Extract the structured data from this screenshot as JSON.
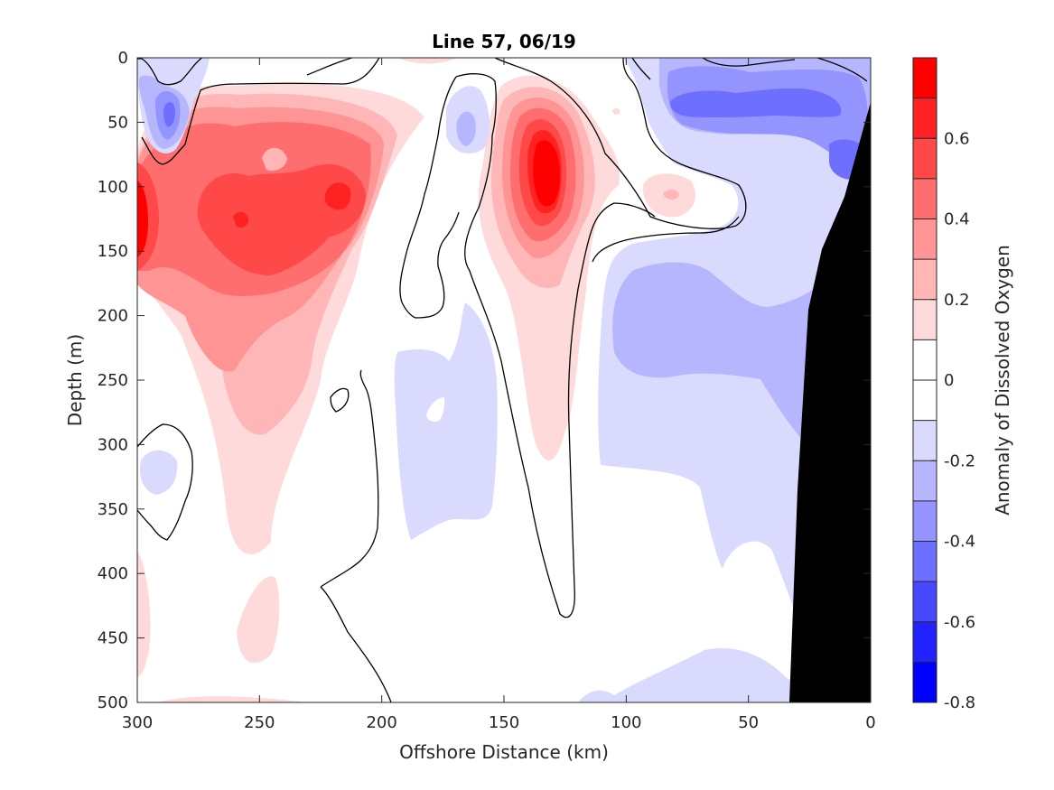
{
  "chart_data": {
    "type": "contour",
    "title": "Line 57, 06/19",
    "xlabel": "Offshore Distance (km)",
    "ylabel": "Depth (m)",
    "colorbar_label": "Anomaly of Dissolved Oxygen",
    "xlim": [
      300,
      0
    ],
    "ylim": [
      0,
      500
    ],
    "x_reversed": true,
    "y_reversed": true,
    "x_ticks": [
      "300",
      "250",
      "200",
      "150",
      "100",
      "50",
      "0"
    ],
    "y_ticks": [
      "0",
      "50",
      "100",
      "150",
      "200",
      "250",
      "300",
      "350",
      "400",
      "450",
      "500"
    ],
    "colorbar_range": [
      -0.8,
      0.8
    ],
    "colorbar_ticks": [
      "0.6",
      "0.4",
      "0.2",
      "0",
      "-0.2",
      "-0.4",
      "-0.6",
      "-0.8"
    ],
    "colorbar_levels": [
      {
        "min": 0.7,
        "max": 0.8,
        "color": "#ff0000"
      },
      {
        "min": 0.6,
        "max": 0.7,
        "color": "#ff2222"
      },
      {
        "min": 0.5,
        "max": 0.6,
        "color": "#ff4848"
      },
      {
        "min": 0.4,
        "max": 0.5,
        "color": "#ff6e6e"
      },
      {
        "min": 0.3,
        "max": 0.4,
        "color": "#ff9494"
      },
      {
        "min": 0.2,
        "max": 0.3,
        "color": "#ffb6b6"
      },
      {
        "min": 0.1,
        "max": 0.2,
        "color": "#ffdada"
      },
      {
        "min": 0.0,
        "max": 0.1,
        "color": "#ffffff"
      },
      {
        "min": -0.1,
        "max": 0.0,
        "color": "#ffffff"
      },
      {
        "min": -0.2,
        "max": -0.1,
        "color": "#dadaff"
      },
      {
        "min": -0.3,
        "max": -0.2,
        "color": "#b6b6ff"
      },
      {
        "min": -0.4,
        "max": -0.3,
        "color": "#9494ff"
      },
      {
        "min": -0.5,
        "max": -0.4,
        "color": "#6e6eff"
      },
      {
        "min": -0.6,
        "max": -0.5,
        "color": "#4848ff"
      },
      {
        "min": -0.7,
        "max": -0.6,
        "color": "#2222ff"
      },
      {
        "min": -0.8,
        "max": -0.7,
        "color": "#0000ff"
      }
    ],
    "regions": [
      {
        "name": "offshore-positive-anomaly",
        "sign": "positive",
        "x_range": [
          300,
          195
        ],
        "depth_range": [
          60,
          385
        ],
        "peak_value": 0.6,
        "peak_location": {
          "x": 250,
          "depth": 125
        }
      },
      {
        "name": "offshore-edge-positive-anomaly",
        "sign": "positive",
        "x_range": [
          300,
          290
        ],
        "depth_range": [
          80,
          180
        ],
        "peak_value": 0.7,
        "peak_location": {
          "x": 298,
          "depth": 120
        }
      },
      {
        "name": "mid-positive-anomaly",
        "sign": "positive",
        "x_range": [
          160,
          110
        ],
        "depth_range": [
          20,
          315
        ],
        "peak_value": 0.8,
        "peak_location": {
          "x": 135,
          "depth": 95
        }
      },
      {
        "name": "inshore-small-positive-anomaly",
        "sign": "positive",
        "x_range": [
          95,
          70
        ],
        "depth_range": [
          90,
          125
        ],
        "peak_value": 0.3
      },
      {
        "name": "nearshore-negative-anomaly",
        "sign": "negative",
        "x_range": [
          110,
          0
        ],
        "depth_range": [
          0,
          440
        ],
        "peak_value": -0.5,
        "peak_location": {
          "x": 60,
          "depth": 40
        }
      },
      {
        "name": "mid-negative-anomaly",
        "sign": "negative",
        "x_range": [
          195,
          150
        ],
        "depth_range": [
          190,
          375
        ],
        "peak_value": -0.2
      },
      {
        "name": "offshore-surface-negative-anomaly",
        "sign": "negative",
        "x_range": [
          300,
          270
        ],
        "depth_range": [
          5,
          75
        ],
        "peak_value": -0.4
      },
      {
        "name": "small-negative-eddy",
        "sign": "negative",
        "x_range": [
          175,
          155
        ],
        "depth_range": [
          25,
          75
        ],
        "peak_value": -0.2
      }
    ],
    "seafloor": {
      "color": "#000000",
      "points": [
        [
          33,
          500
        ],
        [
          30,
          340
        ],
        [
          25,
          195
        ],
        [
          20,
          150
        ],
        [
          10,
          105
        ],
        [
          0,
          35
        ],
        [
          0,
          500
        ]
      ]
    }
  }
}
